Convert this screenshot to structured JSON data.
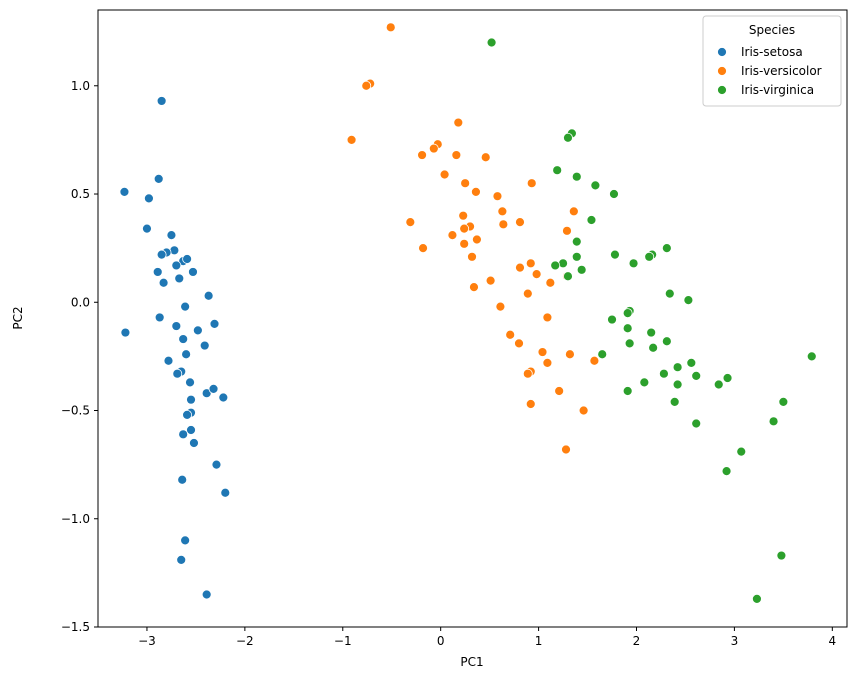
{
  "chart_data": {
    "type": "scatter",
    "xlabel": "PC1",
    "ylabel": "PC2",
    "xlim": [
      -3.5,
      4.15
    ],
    "ylim": [
      -1.5,
      1.35
    ],
    "xticks": [
      -3,
      -2,
      -1,
      0,
      1,
      2,
      3,
      4
    ],
    "yticks": [
      -1.5,
      -1.0,
      -0.5,
      0.0,
      0.5,
      1.0
    ],
    "grid": false,
    "legend": {
      "title": "Species",
      "placement": "top-right"
    },
    "series": [
      {
        "name": "Iris-setosa",
        "color": "#1f77b4",
        "points": [
          [
            -2.85,
            0.93
          ],
          [
            -3.23,
            0.51
          ],
          [
            -2.88,
            0.57
          ],
          [
            -2.98,
            0.48
          ],
          [
            -3.0,
            0.34
          ],
          [
            -2.75,
            0.31
          ],
          [
            -2.72,
            0.24
          ],
          [
            -2.8,
            0.23
          ],
          [
            -2.85,
            0.22
          ],
          [
            -2.63,
            0.19
          ],
          [
            -2.59,
            0.2
          ],
          [
            -2.53,
            0.14
          ],
          [
            -2.89,
            0.14
          ],
          [
            -2.7,
            0.17
          ],
          [
            -2.67,
            0.11
          ],
          [
            -2.83,
            0.09
          ],
          [
            -2.37,
            0.03
          ],
          [
            -2.61,
            -0.02
          ],
          [
            -2.87,
            -0.07
          ],
          [
            -2.7,
            -0.11
          ],
          [
            -2.31,
            -0.1
          ],
          [
            -3.22,
            -0.14
          ],
          [
            -2.48,
            -0.13
          ],
          [
            -2.63,
            -0.17
          ],
          [
            -2.41,
            -0.2
          ],
          [
            -2.6,
            -0.24
          ],
          [
            -2.78,
            -0.27
          ],
          [
            -2.65,
            -0.32
          ],
          [
            -2.69,
            -0.33
          ],
          [
            -2.56,
            -0.37
          ],
          [
            -2.39,
            -0.42
          ],
          [
            -2.32,
            -0.4
          ],
          [
            -2.22,
            -0.44
          ],
          [
            -2.55,
            -0.45
          ],
          [
            -2.55,
            -0.51
          ],
          [
            -2.59,
            -0.52
          ],
          [
            -2.55,
            -0.59
          ],
          [
            -2.63,
            -0.61
          ],
          [
            -2.52,
            -0.65
          ],
          [
            -2.29,
            -0.75
          ],
          [
            -2.64,
            -0.82
          ],
          [
            -2.2,
            -0.88
          ],
          [
            -2.61,
            -1.1
          ],
          [
            -2.65,
            -1.19
          ],
          [
            -2.39,
            -1.35
          ]
        ]
      },
      {
        "name": "Iris-versicolor",
        "color": "#ff7f0e",
        "points": [
          [
            -0.51,
            1.27
          ],
          [
            -0.72,
            1.01
          ],
          [
            -0.76,
            1.0
          ],
          [
            -0.91,
            0.75
          ],
          [
            0.18,
            0.83
          ],
          [
            -0.03,
            0.73
          ],
          [
            -0.07,
            0.71
          ],
          [
            -0.19,
            0.68
          ],
          [
            0.16,
            0.68
          ],
          [
            0.46,
            0.67
          ],
          [
            0.04,
            0.59
          ],
          [
            0.25,
            0.55
          ],
          [
            0.93,
            0.55
          ],
          [
            0.36,
            0.51
          ],
          [
            0.58,
            0.49
          ],
          [
            0.63,
            0.42
          ],
          [
            0.23,
            0.4
          ],
          [
            1.36,
            0.42
          ],
          [
            0.81,
            0.37
          ],
          [
            -0.31,
            0.37
          ],
          [
            0.64,
            0.36
          ],
          [
            0.3,
            0.35
          ],
          [
            0.24,
            0.34
          ],
          [
            0.12,
            0.31
          ],
          [
            0.37,
            0.29
          ],
          [
            1.29,
            0.33
          ],
          [
            0.24,
            0.27
          ],
          [
            -0.18,
            0.25
          ],
          [
            0.32,
            0.21
          ],
          [
            0.92,
            0.18
          ],
          [
            0.81,
            0.16
          ],
          [
            0.98,
            0.13
          ],
          [
            1.29,
            0.12
          ],
          [
            0.51,
            0.1
          ],
          [
            1.12,
            0.09
          ],
          [
            0.34,
            0.07
          ],
          [
            0.89,
            0.04
          ],
          [
            0.61,
            -0.02
          ],
          [
            1.09,
            -0.07
          ],
          [
            0.71,
            -0.15
          ],
          [
            0.8,
            -0.19
          ],
          [
            1.04,
            -0.23
          ],
          [
            1.32,
            -0.24
          ],
          [
            1.09,
            -0.28
          ],
          [
            1.57,
            -0.27
          ],
          [
            0.92,
            -0.32
          ],
          [
            0.89,
            -0.33
          ],
          [
            1.21,
            -0.41
          ],
          [
            0.92,
            -0.47
          ],
          [
            1.46,
            -0.5
          ],
          [
            1.28,
            -0.68
          ]
        ]
      },
      {
        "name": "Iris-virginica",
        "color": "#2ca02c",
        "points": [
          [
            0.52,
            1.2
          ],
          [
            1.34,
            0.78
          ],
          [
            1.3,
            0.76
          ],
          [
            1.19,
            0.61
          ],
          [
            1.39,
            0.58
          ],
          [
            1.58,
            0.54
          ],
          [
            1.77,
            0.5
          ],
          [
            1.54,
            0.38
          ],
          [
            1.39,
            0.28
          ],
          [
            2.31,
            0.25
          ],
          [
            2.16,
            0.22
          ],
          [
            1.78,
            0.22
          ],
          [
            2.13,
            0.21
          ],
          [
            1.39,
            0.21
          ],
          [
            1.97,
            0.18
          ],
          [
            1.25,
            0.18
          ],
          [
            1.17,
            0.17
          ],
          [
            1.44,
            0.15
          ],
          [
            1.3,
            0.12
          ],
          [
            2.34,
            0.04
          ],
          [
            2.53,
            0.01
          ],
          [
            1.93,
            -0.04
          ],
          [
            1.91,
            -0.05
          ],
          [
            1.75,
            -0.08
          ],
          [
            1.91,
            -0.12
          ],
          [
            2.15,
            -0.14
          ],
          [
            1.65,
            -0.24
          ],
          [
            1.93,
            -0.19
          ],
          [
            2.31,
            -0.18
          ],
          [
            2.17,
            -0.21
          ],
          [
            3.79,
            -0.25
          ],
          [
            2.56,
            -0.28
          ],
          [
            2.42,
            -0.3
          ],
          [
            2.61,
            -0.34
          ],
          [
            2.28,
            -0.33
          ],
          [
            2.93,
            -0.35
          ],
          [
            2.84,
            -0.38
          ],
          [
            2.42,
            -0.38
          ],
          [
            2.08,
            -0.37
          ],
          [
            1.91,
            -0.41
          ],
          [
            3.5,
            -0.46
          ],
          [
            2.39,
            -0.46
          ],
          [
            3.4,
            -0.55
          ],
          [
            2.61,
            -0.56
          ],
          [
            3.07,
            -0.69
          ],
          [
            2.92,
            -0.78
          ],
          [
            3.48,
            -1.17
          ],
          [
            3.23,
            -1.37
          ]
        ]
      }
    ]
  }
}
